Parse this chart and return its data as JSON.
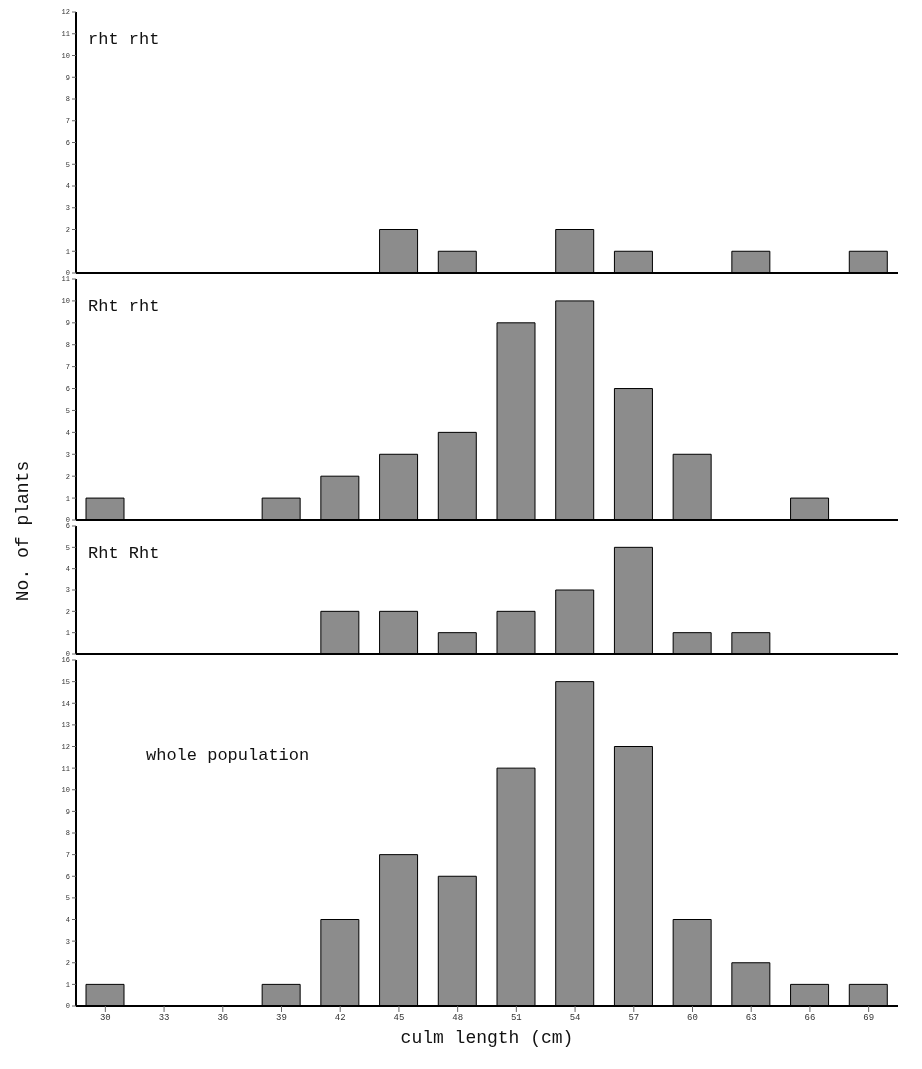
{
  "chart_data": [
    {
      "type": "bar",
      "title": "rht rht",
      "categories": [
        "30",
        "33",
        "36",
        "39",
        "42",
        "45",
        "48",
        "51",
        "54",
        "57",
        "60",
        "63",
        "66",
        "69"
      ],
      "color": "#8c8c8c",
      "values": [
        0,
        0,
        0,
        0,
        0,
        2,
        1,
        0,
        2,
        1,
        0,
        1,
        0,
        1
      ],
      "ylim": [
        0,
        12
      ],
      "yticks": [
        0,
        1,
        2,
        3,
        4,
        5,
        6,
        7,
        8,
        9,
        10,
        11,
        12
      ],
      "tick_labels": "y",
      "grid": false,
      "legend": false
    },
    {
      "type": "bar",
      "title": "Rht rht",
      "categories": [
        "30",
        "33",
        "36",
        "39",
        "42",
        "45",
        "48",
        "51",
        "54",
        "57",
        "60",
        "63",
        "66",
        "69"
      ],
      "color": "#8c8c8c",
      "values": [
        1,
        0,
        0,
        1,
        2,
        3,
        4,
        9,
        10,
        6,
        3,
        0,
        1,
        0
      ],
      "ylim": [
        0,
        11
      ],
      "yticks": [
        0,
        1,
        2,
        3,
        4,
        5,
        6,
        7,
        8,
        9,
        10,
        11
      ],
      "tick_labels": "y",
      "grid": false,
      "legend": false
    },
    {
      "type": "bar",
      "title": "Rht Rht",
      "ylabel": "No. of plants",
      "categories": [
        "30",
        "33",
        "36",
        "39",
        "42",
        "45",
        "48",
        "51",
        "54",
        "57",
        "60",
        "63",
        "66",
        "69"
      ],
      "color": "#8c8c8c",
      "values": [
        0,
        0,
        0,
        0,
        2,
        2,
        1,
        2,
        3,
        5,
        1,
        1,
        0,
        0
      ],
      "ylim": [
        0,
        6
      ],
      "yticks": [
        0,
        1,
        2,
        3,
        4,
        5,
        6
      ],
      "tick_labels": "y",
      "grid": false,
      "legend": false
    },
    {
      "type": "bar",
      "title": "whole population",
      "xlabel": "culm length (cm)",
      "categories": [
        "30",
        "33",
        "36",
        "39",
        "42",
        "45",
        "48",
        "51",
        "54",
        "57",
        "60",
        "63",
        "66",
        "69"
      ],
      "color": "#8c8c8c",
      "values": [
        1,
        0,
        0,
        1,
        4,
        7,
        6,
        11,
        15,
        12,
        4,
        2,
        1,
        1
      ],
      "ylim": [
        0,
        16
      ],
      "yticks": [
        0,
        1,
        2,
        3,
        4,
        5,
        6,
        7,
        8,
        9,
        10,
        11,
        12,
        13,
        14,
        15,
        16
      ],
      "grid": false,
      "legend": false
    }
  ]
}
